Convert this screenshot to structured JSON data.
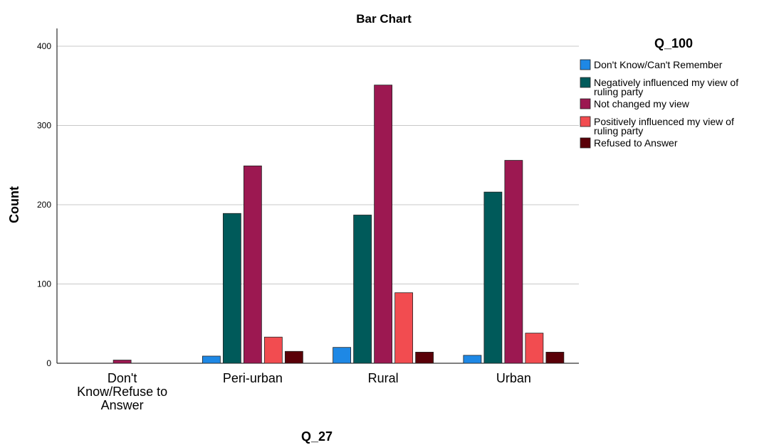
{
  "chart_data": {
    "type": "bar",
    "title": "Bar Chart",
    "xlabel": "Q_27",
    "ylabel": "Count",
    "ylim": [
      0,
      420
    ],
    "yticks": [
      0,
      100,
      200,
      300,
      400
    ],
    "grid": "horizontal",
    "legend_title": "Q_100",
    "legend_position": "right",
    "categories": [
      [
        "Don't",
        "Know/Refuse to",
        "Answer"
      ],
      [
        "Peri-urban"
      ],
      [
        "Rural"
      ],
      [
        "Urban"
      ]
    ],
    "series": [
      {
        "name": "Don't Know/Can't Remember",
        "legend_lines": [
          "Don't Know/Can't Remember"
        ],
        "color": "#1e88e5",
        "values": [
          0,
          9,
          20,
          10
        ]
      },
      {
        "name": "Negatively influenced my view of ruling party",
        "legend_lines": [
          "Negatively influenced my view of",
          "ruling party"
        ],
        "color": "#005a5a",
        "values": [
          0,
          189,
          187,
          216
        ]
      },
      {
        "name": "Not changed my view",
        "legend_lines": [
          "Not changed my view"
        ],
        "color": "#9c1851",
        "values": [
          4,
          249,
          351,
          256
        ]
      },
      {
        "name": "Positively influenced my view of ruling party",
        "legend_lines": [
          "Positively influenced my view of",
          "ruling party"
        ],
        "color": "#f24c50",
        "values": [
          0,
          33,
          89,
          38
        ]
      },
      {
        "name": "Refused to Answer",
        "legend_lines": [
          "Refused to Answer"
        ],
        "color": "#5a0008",
        "values": [
          0,
          15,
          14,
          14
        ]
      }
    ]
  }
}
